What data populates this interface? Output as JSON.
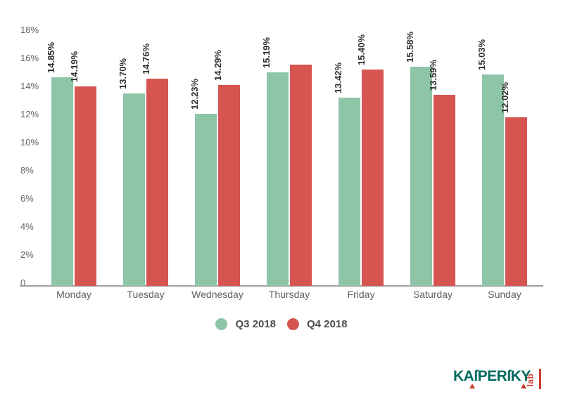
{
  "chart_data": {
    "type": "bar",
    "title": "",
    "xlabel": "",
    "ylabel": "",
    "categories": [
      "Monday",
      "Tuesday",
      "Wednesday",
      "Thursday",
      "Friday",
      "Saturday",
      "Sunday"
    ],
    "series": [
      {
        "name": "Q3 2018",
        "color": "#8ec4a7",
        "values": [
          14.85,
          13.7,
          12.23,
          15.19,
          13.42,
          15.58,
          15.03
        ],
        "bar_labels": [
          "14.85%",
          "13.70%",
          "12.23%",
          "15.19%",
          "13.42%",
          "15.58%",
          "15.03%"
        ]
      },
      {
        "name": "Q4 2018",
        "color": "#d65551",
        "values": [
          14.19,
          14.76,
          14.29,
          15.75,
          15.4,
          13.59,
          12.02
        ],
        "bar_labels": [
          "14.19%",
          "14.76%",
          "14.29%",
          "",
          "15.40%",
          "13.59%",
          "12.02%"
        ]
      }
    ],
    "ylim": [
      0,
      18
    ],
    "yticks": {
      "values": [
        0,
        2,
        4,
        6,
        8,
        10,
        12,
        14,
        16,
        18
      ],
      "labels": [
        "0",
        "2%",
        "4%",
        "6%",
        "8%",
        "10%",
        "12%",
        "14%",
        "16%",
        "18%"
      ]
    },
    "grid": false,
    "legend_position": "bottom-center",
    "bar_value_label_rotation_deg": 90
  },
  "legend": {
    "items": [
      {
        "label": "Q3 2018",
        "color": "#8ec4a7"
      },
      {
        "label": "Q4 2018",
        "color": "#d65551"
      }
    ]
  },
  "branding": {
    "brand_text": "KAſPERſKY",
    "sub_text": "lab",
    "brand_color": "#006a5e",
    "accent_color": "#cc392e"
  }
}
